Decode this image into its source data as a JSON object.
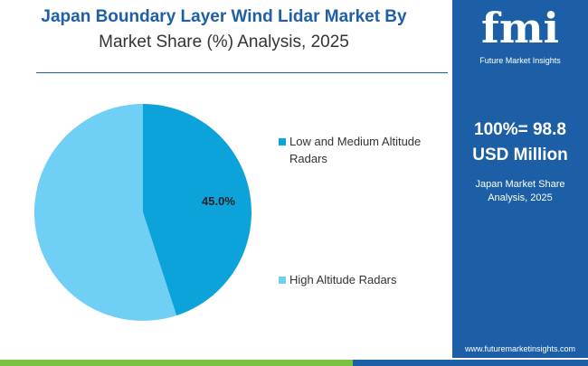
{
  "chart_data": {
    "type": "pie",
    "title": "Japan Boundary Layer Wind Lidar Market By",
    "subtitle": "Market Share (%) Analysis, 2025",
    "categories": [
      "Low and Medium Altitude Radars",
      "High Altitude Radars"
    ],
    "values": [
      45.0,
      55.0
    ],
    "value_labels": [
      "45.0%",
      null
    ],
    "colors": [
      "#0ba3da",
      "#6fcff4"
    ],
    "legend": "right"
  },
  "panel": {
    "logo": "fmi",
    "brand": "Future Market Insights",
    "total_line1": "100%= 98.8",
    "total_line2": "USD Million",
    "subtitle": "Japan Market Share Analysis, 2025",
    "url": "www.futuremarketinsights.com"
  }
}
